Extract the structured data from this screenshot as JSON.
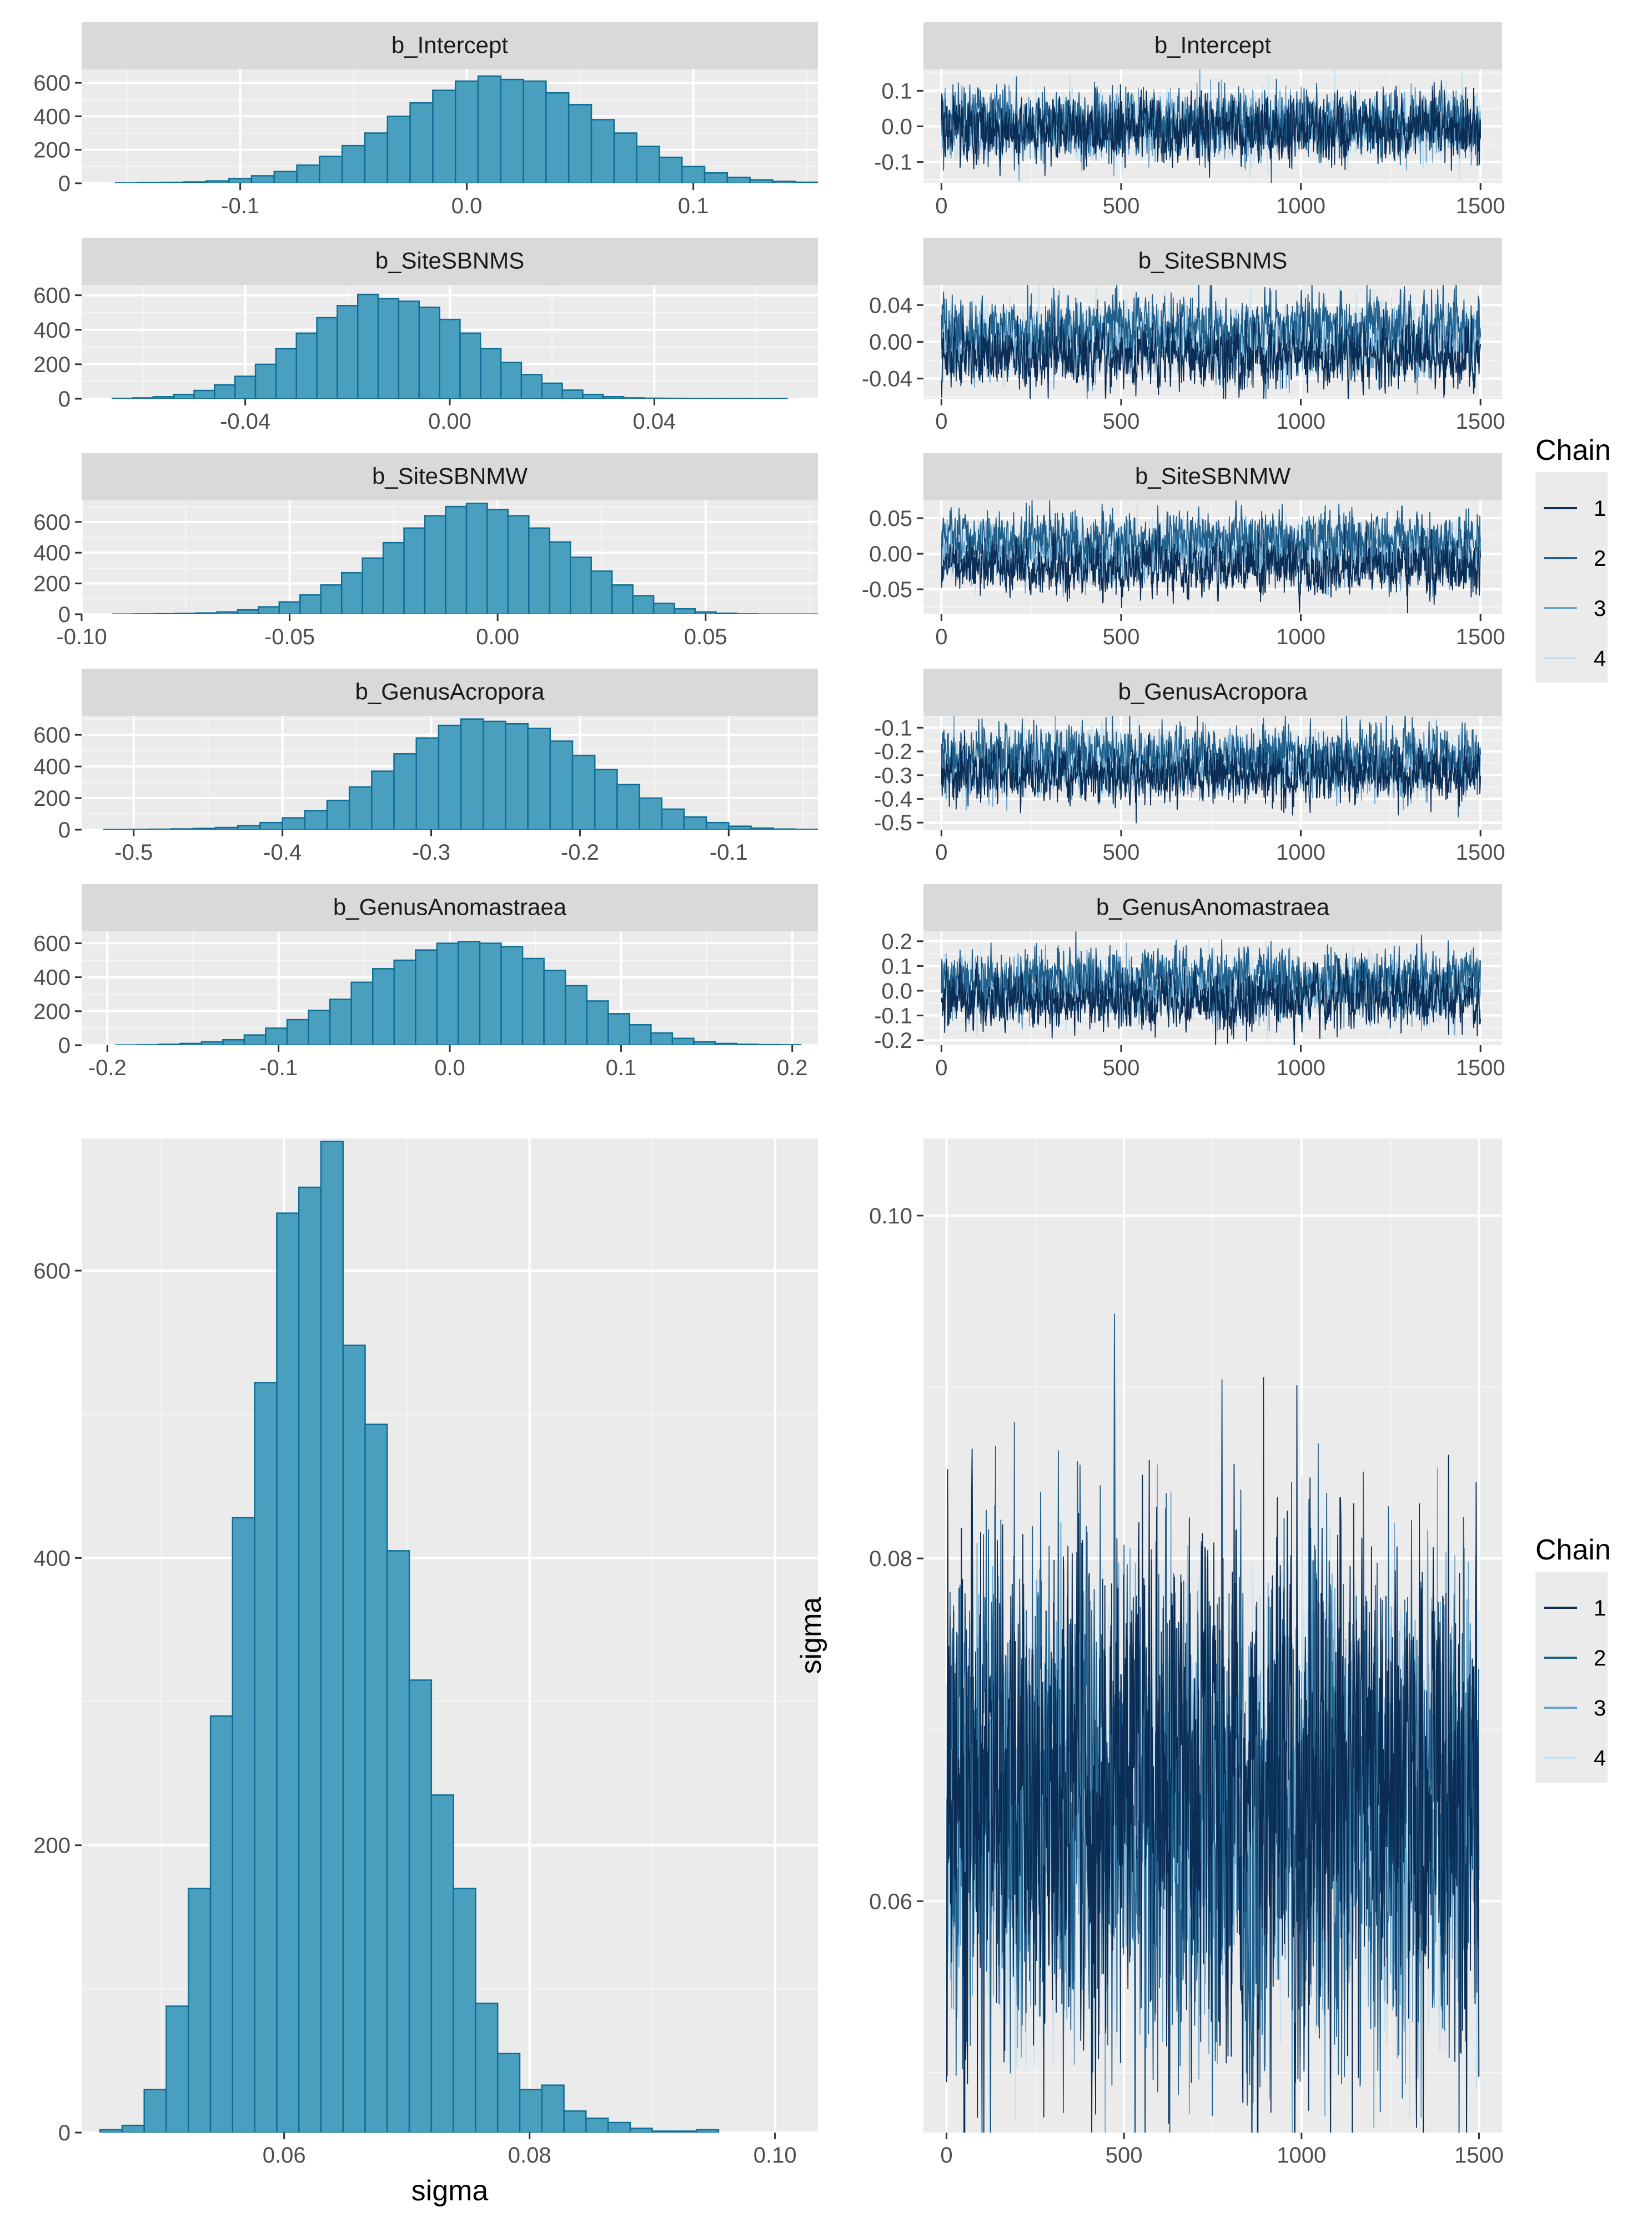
{
  "colors": {
    "panel_bg": "#EBEBEB",
    "strip_bg": "#D9D9D9",
    "grid_major": "#FFFFFF",
    "bar_fill": "#4A9FBF",
    "bar_stroke": "#0E6E94",
    "chains": [
      "#0B2D55",
      "#1F5F8B",
      "#6CA5CC",
      "#C9E1EF"
    ]
  },
  "legend": {
    "title": "Chain",
    "labels": [
      "1",
      "2",
      "3",
      "4"
    ]
  },
  "chart_data": [
    {
      "type": "histogram",
      "id": "hist-b-intercept",
      "title": "b_Intercept",
      "xlim": [
        -0.17,
        0.155
      ],
      "ylim": [
        0,
        680
      ],
      "xticks": [
        -0.1,
        0.0,
        0.1
      ],
      "xtick_labels": [
        "-0.1",
        "0.0",
        "0.1"
      ],
      "yticks": [
        0,
        200,
        400,
        600
      ],
      "ytick_labels": [
        "0",
        "200",
        "400",
        "600"
      ],
      "bins": {
        "start": -0.155,
        "width": 0.01,
        "counts": [
          2,
          3,
          5,
          8,
          14,
          28,
          45,
          70,
          108,
          160,
          225,
          300,
          400,
          480,
          555,
          610,
          640,
          620,
          610,
          540,
          470,
          380,
          300,
          220,
          155,
          100,
          62,
          35,
          20,
          11,
          6,
          3
        ]
      }
    },
    {
      "type": "trace",
      "id": "trace-b-intercept",
      "title": "b_Intercept",
      "xlim": [
        -50,
        1560
      ],
      "ylim": [
        -0.16,
        0.16
      ],
      "xticks": [
        0,
        500,
        1000,
        1500
      ],
      "xtick_labels": [
        "0",
        "500",
        "1000",
        "1500"
      ],
      "yticks": [
        -0.1,
        0.0,
        0.1
      ],
      "ytick_labels": [
        "-0.1",
        "0.0",
        "0.1"
      ],
      "iterations": 1500,
      "chains": [
        {
          "mean": -0.01,
          "sd": 0.045
        },
        {
          "mean": 0.01,
          "sd": 0.045
        },
        {
          "mean": 0.0,
          "sd": 0.045
        },
        {
          "mean": 0.0,
          "sd": 0.045
        }
      ]
    },
    {
      "type": "histogram",
      "id": "hist-b-sitesbnms",
      "title": "b_SiteSBNMS",
      "xlim": [
        -0.072,
        0.072
      ],
      "ylim": [
        0,
        660
      ],
      "xticks": [
        -0.04,
        0.0,
        0.04
      ],
      "xtick_labels": [
        "-0.04",
        "0.00",
        "0.04"
      ],
      "yticks": [
        0,
        200,
        400,
        600
      ],
      "ytick_labels": [
        "0",
        "200",
        "400",
        "600"
      ],
      "bins": {
        "start": -0.066,
        "width": 0.004,
        "counts": [
          2,
          5,
          12,
          25,
          48,
          80,
          130,
          200,
          290,
          380,
          470,
          540,
          605,
          580,
          565,
          530,
          460,
          380,
          290,
          210,
          140,
          90,
          50,
          25,
          12,
          5,
          3,
          2,
          1,
          1,
          1,
          1,
          1
        ]
      }
    },
    {
      "type": "trace",
      "id": "trace-b-sitesbnms",
      "title": "b_SiteSBNMS",
      "xlim": [
        -50,
        1560
      ],
      "ylim": [
        -0.062,
        0.062
      ],
      "xticks": [
        0,
        500,
        1000,
        1500
      ],
      "xtick_labels": [
        "0",
        "500",
        "1000",
        "1500"
      ],
      "yticks": [
        -0.04,
        0.0,
        0.04
      ],
      "ytick_labels": [
        "-0.04",
        "0.00",
        "0.04"
      ],
      "iterations": 1500,
      "chains": [
        {
          "mean": -0.015,
          "sd": 0.018
        },
        {
          "mean": 0.015,
          "sd": 0.018
        },
        {
          "mean": -0.005,
          "sd": 0.018
        },
        {
          "mean": 0.005,
          "sd": 0.018
        }
      ]
    },
    {
      "type": "histogram",
      "id": "hist-b-sitesbnmw",
      "title": "b_SiteSBNMW",
      "xlim": [
        -0.1,
        0.077
      ],
      "ylim": [
        0,
        740
      ],
      "xticks": [
        -0.1,
        -0.05,
        0.0,
        0.05
      ],
      "xtick_labels": [
        "-0.10",
        "-0.05",
        "0.00",
        "0.05"
      ],
      "yticks": [
        0,
        200,
        400,
        600
      ],
      "ytick_labels": [
        "0",
        "200",
        "400",
        "600"
      ],
      "bins": {
        "start": -0.0925,
        "width": 0.005,
        "counts": [
          1,
          2,
          3,
          5,
          8,
          15,
          28,
          48,
          80,
          125,
          190,
          270,
          365,
          465,
          560,
          640,
          700,
          720,
          680,
          640,
          560,
          470,
          370,
          280,
          190,
          120,
          70,
          35,
          15,
          6,
          2,
          1,
          1,
          1,
          1
        ]
      }
    },
    {
      "type": "trace",
      "id": "trace-b-sitesbnmw",
      "title": "b_SiteSBNMW",
      "xlim": [
        -50,
        1560
      ],
      "ylim": [
        -0.085,
        0.075
      ],
      "xticks": [
        0,
        500,
        1000,
        1500
      ],
      "xtick_labels": [
        "0",
        "500",
        "1000",
        "1500"
      ],
      "yticks": [
        -0.05,
        0.0,
        0.05
      ],
      "ytick_labels": [
        "-0.05",
        "0.00",
        "0.05"
      ],
      "iterations": 1500,
      "chains": [
        {
          "mean": -0.02,
          "sd": 0.02
        },
        {
          "mean": 0.02,
          "sd": 0.02
        },
        {
          "mean": 0.0,
          "sd": 0.02
        },
        {
          "mean": 0.005,
          "sd": 0.02
        }
      ]
    },
    {
      "type": "histogram",
      "id": "hist-b-genusacropora",
      "title": "b_GenusAcropora",
      "xlim": [
        -0.535,
        -0.04
      ],
      "ylim": [
        0,
        720
      ],
      "xticks": [
        -0.5,
        -0.4,
        -0.3,
        -0.2,
        -0.1
      ],
      "xtick_labels": [
        "-0.5",
        "-0.4",
        "-0.3",
        "-0.2",
        "-0.1"
      ],
      "yticks": [
        0,
        200,
        400,
        600
      ],
      "ytick_labels": [
        "0",
        "200",
        "400",
        "600"
      ],
      "bins": {
        "start": -0.52,
        "width": 0.015,
        "counts": [
          1,
          2,
          3,
          5,
          8,
          14,
          25,
          45,
          75,
          120,
          185,
          270,
          370,
          480,
          580,
          660,
          700,
          685,
          670,
          640,
          560,
          470,
          380,
          285,
          200,
          130,
          80,
          45,
          22,
          10,
          4,
          2,
          1
        ]
      }
    },
    {
      "type": "trace",
      "id": "trace-b-genusacropora",
      "title": "b_GenusAcropora",
      "xlim": [
        -50,
        1560
      ],
      "ylim": [
        -0.53,
        -0.05
      ],
      "xticks": [
        0,
        500,
        1000,
        1500
      ],
      "xtick_labels": [
        "0",
        "500",
        "1000",
        "1500"
      ],
      "yticks": [
        -0.5,
        -0.4,
        -0.3,
        -0.2,
        -0.1
      ],
      "ytick_labels": [
        "-0.5",
        "-0.4",
        "-0.3",
        "-0.2",
        "-0.1"
      ],
      "iterations": 1500,
      "chains": [
        {
          "mean": -0.3,
          "sd": 0.06
        },
        {
          "mean": -0.22,
          "sd": 0.06
        },
        {
          "mean": -0.27,
          "sd": 0.06
        },
        {
          "mean": -0.25,
          "sd": 0.06
        }
      ]
    },
    {
      "type": "histogram",
      "id": "hist-b-genusanomastraea",
      "title": "b_GenusAnomastraea",
      "xlim": [
        -0.215,
        0.215
      ],
      "ylim": [
        0,
        670
      ],
      "xticks": [
        -0.2,
        -0.1,
        0.0,
        0.1,
        0.2
      ],
      "xtick_labels": [
        "-0.2",
        "-0.1",
        "0.0",
        "0.1",
        "0.2"
      ],
      "yticks": [
        0,
        200,
        400,
        600
      ],
      "ytick_labels": [
        "0",
        "200",
        "400",
        "600"
      ],
      "bins": {
        "start": -0.195,
        "width": 0.0125,
        "counts": [
          1,
          2,
          5,
          10,
          20,
          32,
          60,
          100,
          150,
          205,
          270,
          370,
          450,
          500,
          560,
          600,
          610,
          600,
          580,
          510,
          440,
          350,
          260,
          185,
          120,
          72,
          40,
          20,
          10,
          5,
          3,
          2
        ]
      }
    },
    {
      "type": "trace",
      "id": "trace-b-genusanomastraea",
      "title": "b_GenusAnomastraea",
      "xlim": [
        -50,
        1560
      ],
      "ylim": [
        -0.22,
        0.24
      ],
      "xticks": [
        0,
        500,
        1000,
        1500
      ],
      "xtick_labels": [
        "0",
        "500",
        "1000",
        "1500"
      ],
      "yticks": [
        -0.2,
        -0.1,
        0.0,
        0.1,
        0.2
      ],
      "ytick_labels": [
        "-0.2",
        "-0.1",
        "0.0",
        "0.1",
        "0.2"
      ],
      "iterations": 1500,
      "chains": [
        {
          "mean": -0.04,
          "sd": 0.06
        },
        {
          "mean": 0.05,
          "sd": 0.06
        },
        {
          "mean": 0.0,
          "sd": 0.06
        },
        {
          "mean": 0.01,
          "sd": 0.06
        }
      ]
    },
    {
      "type": "histogram",
      "id": "hist-sigma",
      "title": "",
      "xlabel": "sigma",
      "xlim": [
        0.0435,
        0.1035
      ],
      "ylim": [
        0,
        692
      ],
      "xticks": [
        0.06,
        0.08,
        0.1
      ],
      "xtick_labels": [
        "0.06",
        "0.08",
        "0.10"
      ],
      "yticks": [
        0,
        200,
        400,
        600
      ],
      "ytick_labels": [
        "0",
        "200",
        "400",
        "600"
      ],
      "bins": {
        "start": 0.045,
        "width": 0.0018,
        "counts": [
          2,
          5,
          30,
          88,
          170,
          290,
          428,
          522,
          640,
          658,
          690,
          548,
          493,
          405,
          315,
          235,
          170,
          90,
          55,
          30,
          33,
          15,
          10,
          7,
          3,
          1,
          1,
          2
        ]
      }
    },
    {
      "type": "trace",
      "id": "trace-sigma",
      "title": "",
      "ylabel": "sigma",
      "xlim": [
        -65,
        1565
      ],
      "ylim": [
        0.0465,
        0.1045
      ],
      "xticks": [
        0,
        500,
        1000,
        1500
      ],
      "xtick_labels": [
        "0",
        "500",
        "1000",
        "1500"
      ],
      "yticks": [
        0.06,
        0.08,
        0.1
      ],
      "ytick_labels": [
        "0.06",
        "0.08",
        "0.10"
      ],
      "iterations": 1500,
      "chains": [
        {
          "mean": 0.066,
          "sd": 0.0075
        },
        {
          "mean": 0.0655,
          "sd": 0.0075
        },
        {
          "mean": 0.0655,
          "sd": 0.0065
        },
        {
          "mean": 0.065,
          "sd": 0.0055
        }
      ]
    }
  ]
}
